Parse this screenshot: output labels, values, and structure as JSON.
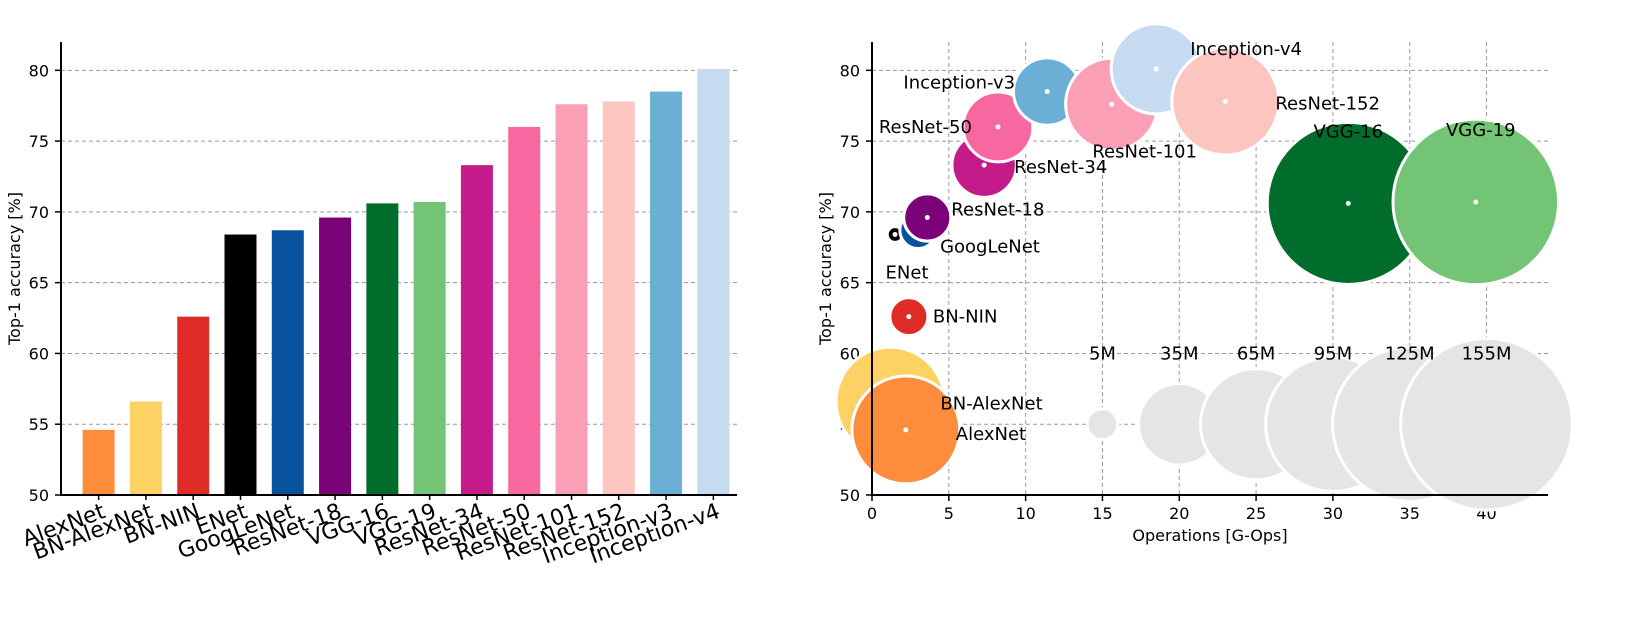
{
  "chart_data": [
    {
      "type": "bar",
      "ylabel": "Top-1 accuracy [%]",
      "ylim": [
        50,
        82
      ],
      "yticks": [
        50,
        55,
        60,
        65,
        70,
        75,
        80
      ],
      "grid": true,
      "categories": [
        "AlexNet",
        "BN-AlexNet",
        "BN-NIN",
        "ENet",
        "GoogLeNet",
        "ResNet-18",
        "VGG-16",
        "VGG-19",
        "ResNet-34",
        "ResNet-50",
        "ResNet-101",
        "ResNet-152",
        "Inception-v3",
        "Inception-v4"
      ],
      "values": [
        54.6,
        56.6,
        62.6,
        68.4,
        68.7,
        69.6,
        70.6,
        70.7,
        73.3,
        76.0,
        77.6,
        77.8,
        78.5,
        80.1
      ],
      "colors": [
        "#fd8d3c",
        "#fed165",
        "#de2d26",
        "#000000",
        "#08519c",
        "#7a0177",
        "#006d2c",
        "#74c476",
        "#c51b8a",
        "#f768a1",
        "#fa9fb5",
        "#fcc5c0",
        "#6baed6",
        "#c6dbef"
      ]
    },
    {
      "type": "scatter",
      "subtype": "bubble",
      "xlabel": "Operations [G-Ops]",
      "ylabel": "Top-1 accuracy [%]",
      "xlim": [
        0,
        44
      ],
      "ylim": [
        50,
        82
      ],
      "xticks": [
        0,
        5,
        10,
        15,
        20,
        25,
        30,
        35,
        40
      ],
      "yticks": [
        50,
        55,
        60,
        65,
        70,
        75,
        80
      ],
      "grid": true,
      "points": [
        {
          "name": "BN-AlexNet",
          "x": 1.2,
          "y": 56.6,
          "params_m": 62,
          "color": "#fed165"
        },
        {
          "name": "AlexNet",
          "x": 2.2,
          "y": 54.6,
          "params_m": 61,
          "color": "#fd8d3c"
        },
        {
          "name": "BN-NIN",
          "x": 2.4,
          "y": 62.6,
          "params_m": 7.6,
          "color": "#de2d26"
        },
        {
          "name": "ENet",
          "x": 1.5,
          "y": 68.4,
          "params_m": 0.4,
          "color": "#000000"
        },
        {
          "name": "GoogLeNet",
          "x": 3.0,
          "y": 68.7,
          "params_m": 7,
          "color": "#08519c"
        },
        {
          "name": "ResNet-18",
          "x": 3.6,
          "y": 69.6,
          "params_m": 11.7,
          "color": "#7a0177"
        },
        {
          "name": "ResNet-34",
          "x": 7.3,
          "y": 73.3,
          "params_m": 21.8,
          "color": "#c51b8a"
        },
        {
          "name": "ResNet-50",
          "x": 8.2,
          "y": 76.0,
          "params_m": 25.6,
          "color": "#f768a1"
        },
        {
          "name": "Inception-v3",
          "x": 11.4,
          "y": 78.5,
          "params_m": 23.8,
          "color": "#6baed6"
        },
        {
          "name": "ResNet-101",
          "x": 15.6,
          "y": 77.6,
          "params_m": 44.5,
          "color": "#fa9fb5"
        },
        {
          "name": "Inception-v4",
          "x": 18.5,
          "y": 80.1,
          "params_m": 42.7,
          "color": "#c6dbef"
        },
        {
          "name": "ResNet-152",
          "x": 23.0,
          "y": 77.8,
          "params_m": 60.2,
          "color": "#fcc5c0"
        },
        {
          "name": "VGG-16",
          "x": 31.0,
          "y": 70.6,
          "params_m": 138,
          "color": "#006d2c"
        },
        {
          "name": "VGG-19",
          "x": 39.3,
          "y": 70.7,
          "params_m": 144,
          "color": "#74c476"
        }
      ],
      "size_legend": {
        "y": 55,
        "color": "#e5e5e5",
        "items": [
          {
            "label": "5M",
            "x": 15,
            "params_m": 5
          },
          {
            "label": "35M",
            "x": 20,
            "params_m": 35
          },
          {
            "label": "65M",
            "x": 25,
            "params_m": 65
          },
          {
            "label": "95M",
            "x": 30,
            "params_m": 95
          },
          {
            "label": "125M",
            "x": 35,
            "params_m": 125
          },
          {
            "label": "155M",
            "x": 40,
            "params_m": 155
          }
        ]
      }
    }
  ]
}
